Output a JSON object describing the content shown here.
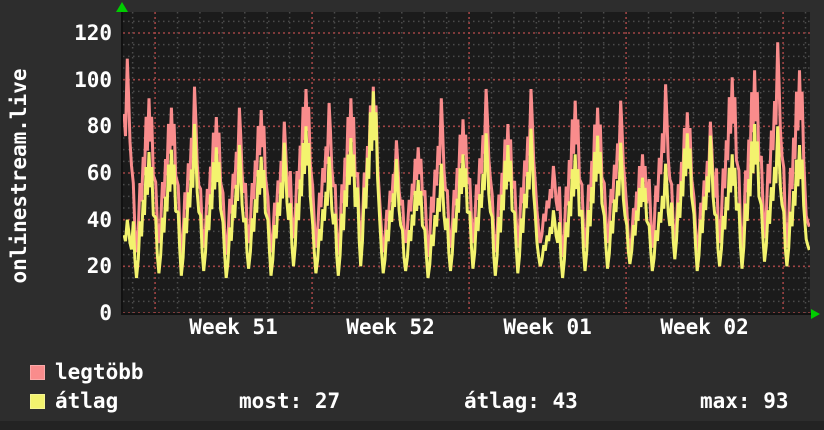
{
  "title": "onlinestream.live",
  "window": {
    "background": "#2d2d2d",
    "footer_strip_color": "#232323",
    "text_color": "#ffffff"
  },
  "legend": {
    "items": [
      {
        "label": "legtöbb",
        "color": "#f98c8c"
      },
      {
        "label": "átlag",
        "color": "#f3f36e"
      }
    ],
    "stats": [
      {
        "text": "most: 27"
      },
      {
        "text": "átlag: 43"
      },
      {
        "text": "max: 93"
      }
    ]
  },
  "chart_data": {
    "type": "line",
    "title": "onlinestream.live",
    "xlabel": "",
    "ylabel": "",
    "y_ticks": [
      0,
      20,
      40,
      60,
      80,
      100,
      120
    ],
    "y_minor_step": 5,
    "ymax": 129,
    "x_tick_labels": [
      "Week 51",
      "Week 52",
      "Week 01",
      "Week 02"
    ],
    "x_label_centers_t": [
      5.5,
      12.5,
      19.5,
      26.5
    ],
    "week_grid_t": [
      2,
      9,
      16,
      23,
      30
    ],
    "t_start": 0.57,
    "t_end": 31.2,
    "plot_background": "#1b1b1b",
    "grid": {
      "major_color": "#a04545",
      "minor_color": "#4b4b4b"
    },
    "axis_color": "#111111",
    "arrow_color": "#00cc00",
    "legend_position": "bottom-left",
    "series": [
      {
        "name": "legtöbb",
        "color": "#f98c8c",
        "daily_peaks": [
          109,
          92,
          88,
          97,
          84,
          88,
          87,
          82,
          96,
          90,
          92,
          97,
          74,
          71,
          92,
          83,
          96,
          81,
          96,
          63,
          91,
          88,
          91,
          68,
          98,
          86,
          82,
          101,
          104,
          116,
          104,
          48
        ],
        "daily_lows": [
          30,
          26,
          30,
          24,
          28,
          25,
          30,
          26,
          32,
          28,
          25,
          30,
          26,
          30,
          24,
          28,
          30,
          26,
          28,
          30,
          24,
          28,
          30,
          26,
          28,
          30,
          26,
          30,
          26,
          32,
          28,
          37
        ]
      },
      {
        "name": "átlag",
        "color": "#f3f36e",
        "daily_peaks": [
          40,
          69,
          70,
          81,
          71,
          72,
          67,
          73,
          80,
          67,
          75,
          95,
          66,
          57,
          64,
          68,
          77,
          72,
          79,
          44,
          68,
          76,
          73,
          58,
          64,
          77,
          76,
          68,
          81,
          80,
          72,
          38
        ],
        "daily_lows": [
          18,
          15,
          17,
          16,
          18,
          15,
          19,
          16,
          20,
          17,
          16,
          20,
          17,
          18,
          15,
          18,
          19,
          16,
          17,
          20,
          15,
          18,
          19,
          21,
          18,
          23,
          18,
          20,
          19,
          22,
          20,
          27
        ]
      }
    ],
    "day_shape_single": [
      [
        0.03,
        0.42
      ],
      [
        0.1,
        0.18
      ],
      [
        0.17,
        0.0
      ],
      [
        0.25,
        0.12
      ],
      [
        0.33,
        0.38
      ],
      [
        0.4,
        0.28
      ],
      [
        0.48,
        0.55
      ],
      [
        0.55,
        0.45
      ],
      [
        0.62,
        0.7
      ],
      [
        0.68,
        0.58
      ],
      [
        0.76,
        1.0
      ],
      [
        0.82,
        0.8
      ],
      [
        0.88,
        0.55
      ],
      [
        0.95,
        0.42
      ]
    ],
    "day_shape_double": [
      [
        0.03,
        0.45
      ],
      [
        0.1,
        0.15
      ],
      [
        0.17,
        0.0
      ],
      [
        0.25,
        0.15
      ],
      [
        0.33,
        0.45
      ],
      [
        0.4,
        0.33
      ],
      [
        0.47,
        0.62
      ],
      [
        0.53,
        0.5
      ],
      [
        0.6,
        0.88
      ],
      [
        0.66,
        0.66
      ],
      [
        0.73,
        1.0
      ],
      [
        0.79,
        0.72
      ],
      [
        0.85,
        0.88
      ],
      [
        0.92,
        0.5
      ]
    ],
    "day_variant": [
      0,
      1,
      1,
      0,
      1,
      0,
      1,
      0,
      1,
      0,
      1,
      1,
      0,
      1,
      0,
      1,
      0,
      1,
      0,
      0,
      1,
      1,
      0,
      1,
      0,
      1,
      0,
      1,
      1,
      0,
      1,
      0
    ]
  }
}
